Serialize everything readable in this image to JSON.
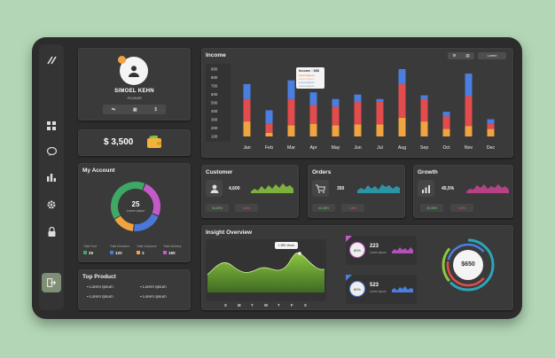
{
  "profile": {
    "name": "SIMOEL KEHN",
    "role": "Account",
    "actions": [
      "⇆",
      "▦",
      "$"
    ]
  },
  "balance": {
    "amount": "$ 3,500"
  },
  "account": {
    "title": "My Account",
    "center_value": "25",
    "center_label": "Lorem ipsum",
    "segments": [
      {
        "label": "Total Post",
        "value": "25",
        "color": "#3fa865"
      },
      {
        "label": "Total Donation",
        "value": "120",
        "color": "#4a78d8"
      },
      {
        "label": "Total Compose",
        "value": "3",
        "color": "#f0a340"
      },
      {
        "label": "Total Delivery",
        "value": "180",
        "color": "#c35ac7"
      }
    ]
  },
  "top_product": {
    "title": "Top Product",
    "items": [
      "Lorem Ipsum",
      "Lorem Ipsum",
      "Lorem Ipsum",
      "Lorem Ipsum"
    ]
  },
  "income": {
    "title": "Income",
    "tooltip": {
      "title": "Income : $$$",
      "lines": [
        "Lorem ipsum",
        "Lorem ipsum",
        "Lorem ipsum",
        "Lorem ipsum"
      ]
    },
    "header_buttons": [
      "⚙",
      "▤",
      "Lorem"
    ]
  },
  "chart_data": {
    "type": "bar",
    "title": "Income",
    "categories": [
      "Jan",
      "Feb",
      "Mar",
      "Apr",
      "May",
      "Jun",
      "Jul",
      "Aug",
      "Sep",
      "Oct",
      "Nov",
      "Dec"
    ],
    "ylim": [
      0,
      900
    ],
    "yticks": [
      "900",
      "800",
      "700",
      "600",
      "500",
      "400",
      "300",
      "200",
      "100"
    ],
    "series": [
      {
        "values": [
          200,
          50,
          150,
          170,
          150,
          160,
          160,
          250,
          200,
          100,
          140,
          100
        ],
        "color": "#f0a340"
      },
      {
        "values": [
          300,
          120,
          350,
          250,
          250,
          300,
          300,
          450,
          300,
          170,
          400,
          70
        ],
        "color": "#e24c4c"
      },
      {
        "values": [
          200,
          180,
          250,
          170,
          100,
          100,
          40,
          200,
          50,
          60,
          300,
          60
        ],
        "color": "#4a7fe0"
      }
    ]
  },
  "customer": {
    "title": "Customer",
    "value": "4,600",
    "up": "36,89%",
    "down": "0,8%"
  },
  "orders": {
    "title": "Orders",
    "value": "350",
    "up": "40,08%",
    "down": "0,8%"
  },
  "growth": {
    "title": "Growth",
    "value": "45,5%",
    "up": "40,08%",
    "down": "0,8%"
  },
  "insight": {
    "title": "Insight Overview",
    "tooltip": "1.890 Views",
    "days": [
      "S",
      "M",
      "T",
      "W",
      "T",
      "F",
      "S"
    ],
    "card1": {
      "value": "223",
      "label": "Lorem ipsum",
      "badge": "80%"
    },
    "card2": {
      "value": "523",
      "label": "Lorem ipsum",
      "badge": "80%"
    },
    "total": "$650"
  },
  "colors": {
    "accent_green": "#8cc63f",
    "orange": "#f0a340",
    "red": "#e24c4c",
    "blue": "#4a7fe0",
    "purple": "#c35ac7"
  }
}
